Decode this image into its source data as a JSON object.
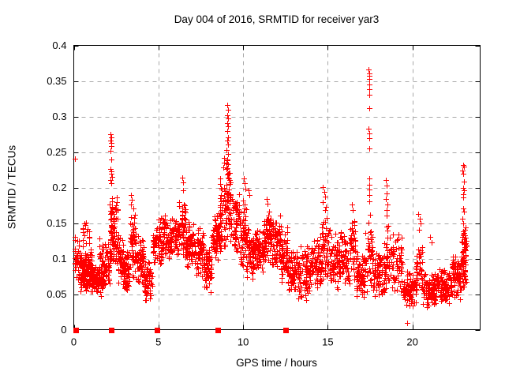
{
  "window": {
    "background": "#ffffff"
  },
  "chart_data": {
    "type": "scatter",
    "title": "Day 004 of 2016, SRMTID for receiver yar3",
    "xlabel": "GPS time / hours",
    "ylabel": "SRMTID / TECUs",
    "xlim": [
      0,
      24
    ],
    "ylim": [
      0,
      0.4
    ],
    "grid": true,
    "legend": "none",
    "marker": "plus",
    "marker_size_px": 7,
    "colors": {
      "marker": "#ff0000",
      "grid": "#a8a8a8",
      "axis": "#000000",
      "text": "#000000"
    },
    "xticks": [
      {
        "label": "0",
        "value": 0
      },
      {
        "label": "5",
        "value": 5
      },
      {
        "label": "10",
        "value": 10
      },
      {
        "label": "15",
        "value": 15
      },
      {
        "label": "20",
        "value": 20
      }
    ],
    "yticks": [
      {
        "label": "0",
        "value": 0
      },
      {
        "label": "0.05",
        "value": 0.05
      },
      {
        "label": "0.1",
        "value": 0.1
      },
      {
        "label": "0.15",
        "value": 0.15
      },
      {
        "label": "0.2",
        "value": 0.2
      },
      {
        "label": "0.25",
        "value": 0.25
      },
      {
        "label": "0.3",
        "value": 0.3
      },
      {
        "label": "0.35",
        "value": 0.35
      },
      {
        "label": "0.4",
        "value": 0.4
      }
    ],
    "axis_markers": {
      "shape": "filled-square",
      "color": "#ff0000",
      "y": 0,
      "x": [
        0.1,
        2.2,
        4.9,
        8.5,
        12.5
      ]
    },
    "feature_points": [
      [
        0.07,
        0.241
      ],
      [
        2.17,
        0.275
      ],
      [
        2.21,
        0.271
      ],
      [
        2.19,
        0.266
      ],
      [
        2.23,
        0.263
      ],
      [
        2.2,
        0.258
      ],
      [
        2.18,
        0.252
      ],
      [
        2.21,
        0.239
      ],
      [
        2.18,
        0.226
      ],
      [
        2.22,
        0.223
      ],
      [
        2.2,
        0.219
      ],
      [
        2.24,
        0.215
      ],
      [
        2.19,
        0.211
      ],
      [
        2.22,
        0.206
      ],
      [
        2.52,
        0.186
      ],
      [
        2.56,
        0.18
      ],
      [
        2.48,
        0.175
      ],
      [
        3.38,
        0.19
      ],
      [
        3.42,
        0.183
      ],
      [
        3.4,
        0.176
      ],
      [
        6.42,
        0.214
      ],
      [
        6.46,
        0.207
      ],
      [
        6.44,
        0.196
      ],
      [
        8.86,
        0.242
      ],
      [
        8.9,
        0.235
      ],
      [
        8.83,
        0.228
      ],
      [
        9.05,
        0.316
      ],
      [
        9.09,
        0.309
      ],
      [
        9.07,
        0.302
      ],
      [
        9.11,
        0.297
      ],
      [
        9.06,
        0.291
      ],
      [
        9.1,
        0.286
      ],
      [
        9.08,
        0.279
      ],
      [
        9.13,
        0.271
      ],
      [
        9.06,
        0.266
      ],
      [
        9.1,
        0.261
      ],
      [
        9.04,
        0.253
      ],
      [
        9.12,
        0.247
      ],
      [
        9.08,
        0.24
      ],
      [
        9.11,
        0.233
      ],
      [
        9.06,
        0.227
      ],
      [
        9.09,
        0.22
      ],
      [
        9.13,
        0.214
      ],
      [
        10.05,
        0.213
      ],
      [
        10.1,
        0.206
      ],
      [
        10.15,
        0.198
      ],
      [
        10.32,
        0.196
      ],
      [
        10.38,
        0.19
      ],
      [
        11.38,
        0.184
      ],
      [
        11.44,
        0.177
      ],
      [
        14.72,
        0.201
      ],
      [
        14.78,
        0.194
      ],
      [
        14.84,
        0.187
      ],
      [
        14.68,
        0.18
      ],
      [
        14.9,
        0.173
      ],
      [
        16.42,
        0.176
      ],
      [
        16.48,
        0.168
      ],
      [
        17.42,
        0.366
      ],
      [
        17.46,
        0.361
      ],
      [
        17.44,
        0.357
      ],
      [
        17.47,
        0.353
      ],
      [
        17.43,
        0.345
      ],
      [
        17.45,
        0.338
      ],
      [
        17.44,
        0.331
      ],
      [
        17.46,
        0.312
      ],
      [
        17.42,
        0.283
      ],
      [
        17.47,
        0.276
      ],
      [
        17.44,
        0.27
      ],
      [
        17.45,
        0.255
      ],
      [
        17.43,
        0.213
      ],
      [
        17.46,
        0.204
      ],
      [
        17.44,
        0.197
      ],
      [
        17.45,
        0.189
      ],
      [
        17.43,
        0.181
      ],
      [
        18.44,
        0.211
      ],
      [
        18.5,
        0.203
      ],
      [
        18.47,
        0.192
      ],
      [
        18.42,
        0.184
      ],
      [
        18.54,
        0.176
      ],
      [
        18.49,
        0.168
      ],
      [
        18.46,
        0.161
      ],
      [
        19.68,
        0.01
      ],
      [
        20.36,
        0.163
      ],
      [
        20.42,
        0.156
      ],
      [
        20.46,
        0.149
      ],
      [
        20.39,
        0.141
      ],
      [
        21.06,
        0.131
      ],
      [
        21.12,
        0.123
      ],
      [
        23.0,
        0.232
      ],
      [
        23.04,
        0.229
      ],
      [
        22.97,
        0.224
      ],
      [
        23.02,
        0.22
      ],
      [
        23.05,
        0.208
      ],
      [
        23.0,
        0.199
      ],
      [
        23.03,
        0.196
      ],
      [
        22.98,
        0.191
      ],
      [
        23.02,
        0.186
      ],
      [
        23.0,
        0.171
      ],
      [
        23.05,
        0.166
      ],
      [
        22.97,
        0.156
      ],
      [
        23.01,
        0.149
      ],
      [
        23.07,
        0.141
      ],
      [
        22.95,
        0.131
      ],
      [
        23.09,
        0.121
      ],
      [
        23.12,
        0.112
      ]
    ],
    "cluster_fields": [
      "x_start",
      "x_end",
      "y_low",
      "y_high",
      "n_points"
    ],
    "density_clusters": [
      [
        0.05,
        0.35,
        0.055,
        0.14,
        40
      ],
      [
        0.35,
        1.05,
        0.048,
        0.115,
        130
      ],
      [
        0.5,
        0.95,
        0.115,
        0.155,
        18
      ],
      [
        1.05,
        1.8,
        0.045,
        0.095,
        120
      ],
      [
        1.5,
        1.78,
        0.09,
        0.132,
        18
      ],
      [
        1.8,
        2.14,
        0.055,
        0.128,
        40
      ],
      [
        2.14,
        2.3,
        0.085,
        0.2,
        38
      ],
      [
        2.3,
        2.62,
        0.075,
        0.175,
        45
      ],
      [
        2.62,
        2.95,
        0.058,
        0.135,
        48
      ],
      [
        2.95,
        3.3,
        0.05,
        0.115,
        52
      ],
      [
        3.3,
        3.68,
        0.072,
        0.175,
        52
      ],
      [
        3.68,
        4.12,
        0.055,
        0.142,
        58
      ],
      [
        4.12,
        4.66,
        0.04,
        0.1,
        58
      ],
      [
        4.66,
        5.3,
        0.075,
        0.165,
        70
      ],
      [
        5.3,
        6.2,
        0.092,
        0.163,
        105
      ],
      [
        6.2,
        6.62,
        0.098,
        0.19,
        52
      ],
      [
        6.62,
        7.12,
        0.082,
        0.158,
        68
      ],
      [
        7.12,
        7.66,
        0.072,
        0.148,
        68
      ],
      [
        7.66,
        8.12,
        0.05,
        0.122,
        58
      ],
      [
        8.12,
        8.62,
        0.092,
        0.172,
        62
      ],
      [
        8.62,
        8.98,
        0.1,
        0.225,
        45
      ],
      [
        8.98,
        9.28,
        0.118,
        0.245,
        48
      ],
      [
        9.28,
        9.82,
        0.098,
        0.2,
        58
      ],
      [
        9.82,
        10.22,
        0.078,
        0.19,
        52
      ],
      [
        10.22,
        10.62,
        0.068,
        0.148,
        52
      ],
      [
        10.62,
        11.22,
        0.08,
        0.148,
        78
      ],
      [
        11.22,
        11.72,
        0.088,
        0.172,
        68
      ],
      [
        11.72,
        12.22,
        0.082,
        0.162,
        62
      ],
      [
        12.22,
        12.62,
        0.058,
        0.148,
        52
      ],
      [
        12.62,
        13.12,
        0.048,
        0.118,
        62
      ],
      [
        13.12,
        13.92,
        0.04,
        0.122,
        90
      ],
      [
        13.92,
        14.62,
        0.048,
        0.132,
        78
      ],
      [
        14.62,
        15.12,
        0.058,
        0.175,
        52
      ],
      [
        15.12,
        15.72,
        0.05,
        0.138,
        72
      ],
      [
        15.72,
        16.32,
        0.053,
        0.148,
        62
      ],
      [
        16.32,
        16.66,
        0.058,
        0.165,
        42
      ],
      [
        16.66,
        17.22,
        0.04,
        0.118,
        68
      ],
      [
        17.22,
        17.66,
        0.05,
        0.178,
        42
      ],
      [
        17.66,
        18.32,
        0.04,
        0.112,
        72
      ],
      [
        18.32,
        18.72,
        0.048,
        0.152,
        42
      ],
      [
        18.72,
        19.42,
        0.045,
        0.142,
        58
      ],
      [
        19.42,
        20.22,
        0.03,
        0.085,
        82
      ],
      [
        20.22,
        20.62,
        0.04,
        0.132,
        42
      ],
      [
        20.62,
        21.42,
        0.03,
        0.085,
        88
      ],
      [
        21.42,
        22.32,
        0.035,
        0.09,
        98
      ],
      [
        22.32,
        22.82,
        0.04,
        0.11,
        68
      ],
      [
        22.82,
        23.22,
        0.045,
        0.132,
        52
      ],
      [
        23.0,
        23.2,
        0.09,
        0.16,
        20
      ]
    ]
  }
}
